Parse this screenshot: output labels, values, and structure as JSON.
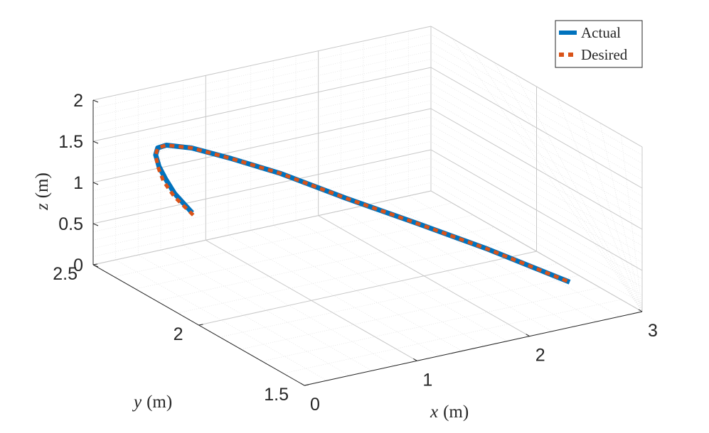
{
  "chart_data": {
    "type": "line",
    "view": "3d",
    "grid": true,
    "minor_grid": true,
    "legend_position": "top-right",
    "axes": {
      "x": {
        "var": "x",
        "unit": "(m)",
        "range": [
          0,
          3
        ],
        "ticks": [
          "0",
          "1",
          "2",
          "3"
        ]
      },
      "y": {
        "var": "y",
        "unit": "(m)",
        "range": [
          1.5,
          2.5
        ],
        "ticks": [
          "1.5",
          "2",
          "2.5"
        ]
      },
      "z": {
        "var": "z",
        "unit": "(m)",
        "range": [
          0,
          2
        ],
        "ticks": [
          "0",
          "0.5",
          "1",
          "1.5",
          "2"
        ]
      }
    },
    "series": [
      {
        "name": "Actual",
        "color": "#0072BD",
        "style": "solid",
        "points": [
          [
            0.73,
            2.42,
            0.53
          ],
          [
            0.63,
            2.45,
            0.75
          ],
          [
            0.55,
            2.45,
            0.95
          ],
          [
            0.51,
            2.46,
            1.1
          ],
          [
            0.48,
            2.46,
            1.25
          ],
          [
            0.48,
            2.45,
            1.35
          ],
          [
            0.52,
            2.43,
            1.4
          ],
          [
            0.65,
            2.38,
            1.4
          ],
          [
            0.85,
            2.3,
            1.33
          ],
          [
            1.1,
            2.2,
            1.22
          ],
          [
            1.4,
            2.05,
            1.05
          ],
          [
            1.75,
            1.9,
            0.86
          ],
          [
            2.1,
            1.75,
            0.66
          ],
          [
            2.45,
            1.55,
            0.45
          ]
        ]
      },
      {
        "name": "Desired",
        "color": "#D95319",
        "style": "dashed",
        "points": [
          [
            0.72,
            2.41,
            0.52
          ],
          [
            0.61,
            2.44,
            0.73
          ],
          [
            0.53,
            2.45,
            0.93
          ],
          [
            0.5,
            2.46,
            1.1
          ],
          [
            0.48,
            2.46,
            1.25
          ],
          [
            0.48,
            2.45,
            1.35
          ],
          [
            0.52,
            2.43,
            1.4
          ],
          [
            0.65,
            2.38,
            1.4
          ],
          [
            0.85,
            2.3,
            1.33
          ],
          [
            1.1,
            2.2,
            1.22
          ],
          [
            1.4,
            2.05,
            1.05
          ],
          [
            1.75,
            1.9,
            0.86
          ],
          [
            2.1,
            1.75,
            0.66
          ],
          [
            2.45,
            1.55,
            0.45
          ]
        ]
      }
    ]
  }
}
